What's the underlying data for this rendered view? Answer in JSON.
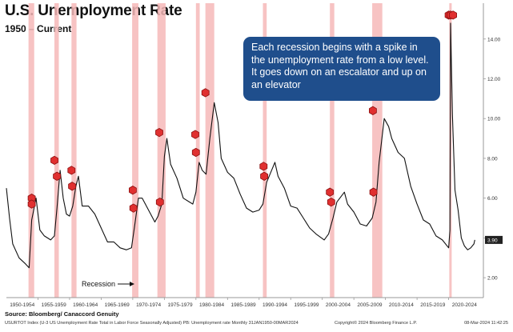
{
  "header": {
    "title": "U.S. Unemployment Rate",
    "subtitle": "1950 – Current"
  },
  "callout": {
    "text": "Each recession begins with a spike in the unemployment rate from a low level.  It goes down on an escalator and up on an elevator"
  },
  "footer": {
    "source": "Source: Bloomberg/ Canaccord Genuity",
    "index_line": "USURTOT Index (U-3 US Unemployment Rate Total in Labor Force Seasonally Adjusted) PB: Unemployment rate  Monthly 31JAN1950-00MAR2024",
    "copyright": "Copyright© 2024 Bloomberg Finance L.P.",
    "timestamp": "08-Mar-2024 11:42:25"
  },
  "colors": {
    "recession_band": "#f6b8b8",
    "line": "#111111",
    "marker": "#e03030",
    "callout_bg": "#1f4e8c",
    "last_value_box": "#222222"
  },
  "chart_data": {
    "type": "line",
    "series": [
      {
        "values": [
          [
            1950.0,
            6.5
          ],
          [
            1950.5,
            5.0
          ],
          [
            1951.0,
            3.7
          ],
          [
            1952.0,
            3.0
          ],
          [
            1953.0,
            2.7
          ],
          [
            1953.6,
            2.5
          ],
          [
            1954.0,
            4.9
          ],
          [
            1954.7,
            6.0
          ],
          [
            1955.3,
            4.4
          ],
          [
            1956.0,
            4.1
          ],
          [
            1957.0,
            3.9
          ],
          [
            1957.6,
            4.1
          ],
          [
            1958.0,
            5.5
          ],
          [
            1958.5,
            7.4
          ],
          [
            1959.0,
            6.0
          ],
          [
            1959.5,
            5.2
          ],
          [
            1960.0,
            5.1
          ],
          [
            1960.5,
            5.6
          ],
          [
            1961.0,
            6.6
          ],
          [
            1961.4,
            7.1
          ],
          [
            1962.0,
            5.6
          ],
          [
            1963.0,
            5.6
          ],
          [
            1964.0,
            5.2
          ],
          [
            1965.0,
            4.5
          ],
          [
            1966.0,
            3.8
          ],
          [
            1967.0,
            3.8
          ],
          [
            1968.0,
            3.5
          ],
          [
            1969.0,
            3.4
          ],
          [
            1969.8,
            3.5
          ],
          [
            1970.3,
            4.6
          ],
          [
            1970.9,
            6.0
          ],
          [
            1971.5,
            6.0
          ],
          [
            1972.5,
            5.4
          ],
          [
            1973.5,
            4.8
          ],
          [
            1974.0,
            5.1
          ],
          [
            1974.6,
            5.7
          ],
          [
            1975.0,
            8.1
          ],
          [
            1975.4,
            9.0
          ],
          [
            1976.0,
            7.7
          ],
          [
            1977.0,
            7.0
          ],
          [
            1978.0,
            6.0
          ],
          [
            1979.0,
            5.8
          ],
          [
            1979.5,
            5.7
          ],
          [
            1980.0,
            6.3
          ],
          [
            1980.5,
            7.8
          ],
          [
            1981.0,
            7.4
          ],
          [
            1981.6,
            7.2
          ],
          [
            1982.2,
            9.0
          ],
          [
            1982.9,
            10.8
          ],
          [
            1983.5,
            9.8
          ],
          [
            1984.0,
            8.0
          ],
          [
            1985.0,
            7.3
          ],
          [
            1986.0,
            7.0
          ],
          [
            1987.0,
            6.2
          ],
          [
            1988.0,
            5.5
          ],
          [
            1989.0,
            5.3
          ],
          [
            1990.0,
            5.4
          ],
          [
            1990.6,
            5.7
          ],
          [
            1991.2,
            6.8
          ],
          [
            1992.5,
            7.8
          ],
          [
            1993.0,
            7.1
          ],
          [
            1994.0,
            6.5
          ],
          [
            1995.0,
            5.6
          ],
          [
            1996.0,
            5.5
          ],
          [
            1997.0,
            5.0
          ],
          [
            1998.0,
            4.5
          ],
          [
            1999.0,
            4.2
          ],
          [
            2000.3,
            3.9
          ],
          [
            2001.0,
            4.2
          ],
          [
            2001.7,
            5.0
          ],
          [
            2002.3,
            5.8
          ],
          [
            2003.5,
            6.3
          ],
          [
            2004.0,
            5.7
          ],
          [
            2005.0,
            5.3
          ],
          [
            2006.0,
            4.7
          ],
          [
            2007.0,
            4.6
          ],
          [
            2007.9,
            5.0
          ],
          [
            2008.5,
            5.8
          ],
          [
            2009.0,
            7.8
          ],
          [
            2009.8,
            10.0
          ],
          [
            2010.5,
            9.6
          ],
          [
            2011.0,
            9.0
          ],
          [
            2012.0,
            8.3
          ],
          [
            2013.0,
            8.0
          ],
          [
            2014.0,
            6.6
          ],
          [
            2015.0,
            5.7
          ],
          [
            2016.0,
            4.9
          ],
          [
            2017.0,
            4.7
          ],
          [
            2018.0,
            4.1
          ],
          [
            2019.0,
            3.9
          ],
          [
            2020.0,
            3.5
          ],
          [
            2020.2,
            4.4
          ],
          [
            2020.3,
            14.8
          ],
          [
            2020.6,
            10.2
          ],
          [
            2021.0,
            6.4
          ],
          [
            2021.5,
            5.4
          ],
          [
            2022.0,
            4.0
          ],
          [
            2022.5,
            3.6
          ],
          [
            2023.0,
            3.4
          ],
          [
            2023.5,
            3.5
          ],
          [
            2024.0,
            3.7
          ],
          [
            2024.15,
            3.9
          ]
        ]
      }
    ],
    "recessions": [
      [
        1953.5,
        1954.4
      ],
      [
        1957.6,
        1958.3
      ],
      [
        1960.3,
        1961.1
      ],
      [
        1969.9,
        1970.9
      ],
      [
        1973.9,
        1975.2
      ],
      [
        1980.0,
        1980.6
      ],
      [
        1981.5,
        1982.9
      ],
      [
        1990.6,
        1991.2
      ],
      [
        2001.2,
        2001.9
      ],
      [
        2007.9,
        2009.5
      ],
      [
        2020.1,
        2020.4
      ]
    ],
    "markers": [
      [
        1954.0,
        6.0
      ],
      [
        1954.0,
        5.7
      ],
      [
        1957.6,
        7.9
      ],
      [
        1958.0,
        7.1
      ],
      [
        1960.3,
        7.4
      ],
      [
        1960.4,
        6.6
      ],
      [
        1970.0,
        6.4
      ],
      [
        1970.1,
        5.5
      ],
      [
        1974.2,
        9.3
      ],
      [
        1974.3,
        5.8
      ],
      [
        1979.9,
        9.2
      ],
      [
        1980.0,
        8.3
      ],
      [
        1981.5,
        11.3
      ],
      [
        1990.7,
        7.6
      ],
      [
        1990.8,
        7.1
      ],
      [
        2001.2,
        6.3
      ],
      [
        2001.4,
        5.8
      ],
      [
        2008.0,
        10.4
      ],
      [
        2008.1,
        6.3
      ],
      [
        2020.0,
        15.2
      ],
      [
        2020.3,
        15.2
      ],
      [
        2020.7,
        15.2
      ]
    ],
    "ylim": [
      1.0,
      15.8
    ],
    "xlim": [
      1950.0,
      2025.5
    ],
    "y_ticks": [
      "2.00",
      "4.00",
      "6.00",
      "8.00",
      "10.00",
      "12.00",
      "14.00"
    ],
    "x_ticks": [
      "1950-1954",
      "1955-1959",
      "1960-1964",
      "1965-1969",
      "1970-1974",
      "1975-1979",
      "1980-1984",
      "1985-1989",
      "1990-1994",
      "1995-1999",
      "2000-2004",
      "2005-2009",
      "2010-2014",
      "2015-2019",
      "2020-2024"
    ],
    "last_value": "3.90",
    "annotation": "Recession",
    "grid": false
  }
}
